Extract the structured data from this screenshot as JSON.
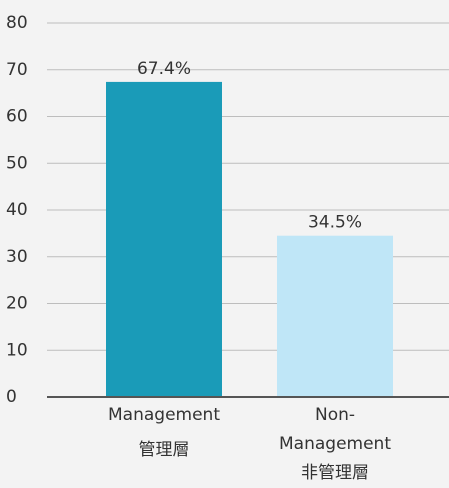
{
  "chart_data": {
    "type": "bar",
    "categories": [
      [
        "Management",
        "管理層"
      ],
      [
        "Non-",
        "Management",
        "非管理層"
      ]
    ],
    "values": [
      67.4,
      34.5
    ],
    "value_labels": [
      "67.4%",
      "34.5%"
    ],
    "colors": [
      "#1a9bb8",
      "#bfe6f7"
    ],
    "ylim": [
      0,
      80
    ],
    "yticks": [
      0,
      10,
      20,
      30,
      40,
      50,
      60,
      70,
      80
    ],
    "grid": true
  }
}
